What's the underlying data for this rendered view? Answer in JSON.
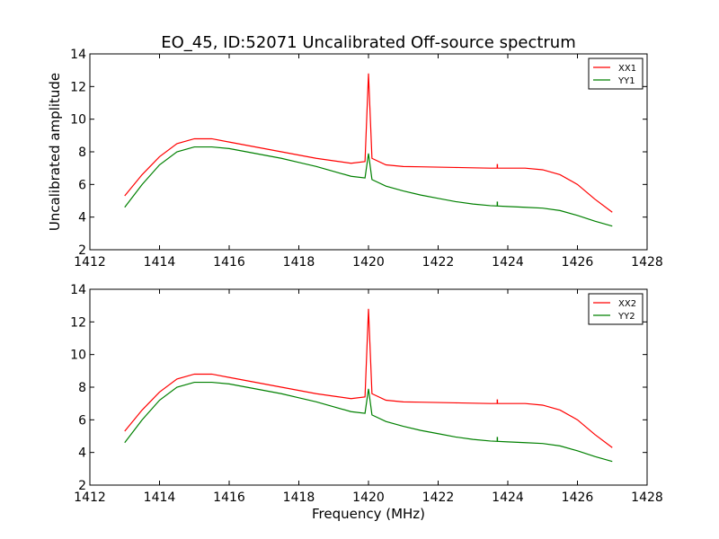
{
  "colors": {
    "xx": "#ff0000",
    "yy": "#008000"
  },
  "chart_data": [
    {
      "type": "line",
      "title": "EO_45, ID:52071 Uncalibrated Off-source spectrum",
      "xlabel": "",
      "ylabel": "Uncalibrated amplitude",
      "xlim": [
        1412,
        1428
      ],
      "ylim": [
        2,
        14
      ],
      "xticks": [
        "1412",
        "1414",
        "1416",
        "1418",
        "1420",
        "1422",
        "1424",
        "1426",
        "1428"
      ],
      "yticks": [
        "2",
        "4",
        "6",
        "8",
        "10",
        "12",
        "14"
      ],
      "legend": "top-right",
      "grid": false,
      "series": [
        {
          "name": "XX1",
          "color": "#ff0000",
          "x": [
            1413.0,
            1413.5,
            1414.0,
            1414.5,
            1415.0,
            1415.5,
            1416.0,
            1416.5,
            1417.0,
            1417.5,
            1418.0,
            1418.5,
            1419.0,
            1419.5,
            1419.9,
            1420.0,
            1420.1,
            1420.5,
            1421.0,
            1421.5,
            1422.0,
            1422.5,
            1423.0,
            1423.5,
            1424.0,
            1424.5,
            1425.0,
            1425.5,
            1426.0,
            1426.5,
            1427.0
          ],
          "y": [
            5.3,
            6.6,
            7.7,
            8.5,
            8.8,
            8.8,
            8.6,
            8.4,
            8.2,
            8.0,
            7.8,
            7.6,
            7.45,
            7.3,
            7.4,
            12.8,
            7.6,
            7.2,
            7.1,
            7.08,
            7.06,
            7.04,
            7.02,
            7.0,
            7.0,
            7.0,
            6.9,
            6.6,
            6.0,
            5.1,
            4.3
          ]
        },
        {
          "name": "YY1",
          "color": "#008000",
          "x": [
            1413.0,
            1413.5,
            1414.0,
            1414.5,
            1415.0,
            1415.5,
            1416.0,
            1416.5,
            1417.0,
            1417.5,
            1418.0,
            1418.5,
            1419.0,
            1419.5,
            1419.9,
            1420.0,
            1420.1,
            1420.5,
            1421.0,
            1421.5,
            1422.0,
            1422.5,
            1423.0,
            1423.5,
            1424.0,
            1424.5,
            1425.0,
            1425.5,
            1426.0,
            1426.5,
            1427.0
          ],
          "y": [
            4.6,
            6.0,
            7.2,
            8.0,
            8.3,
            8.3,
            8.2,
            8.0,
            7.8,
            7.6,
            7.35,
            7.1,
            6.8,
            6.5,
            6.4,
            7.9,
            6.3,
            5.9,
            5.6,
            5.35,
            5.15,
            4.95,
            4.8,
            4.7,
            4.65,
            4.6,
            4.55,
            4.4,
            4.1,
            3.75,
            3.45
          ]
        }
      ],
      "spikes": [
        {
          "series": "XX1",
          "x": 1423.7,
          "y0": 7.0,
          "y1": 7.25
        },
        {
          "series": "YY1",
          "x": 1423.7,
          "y0": 4.7,
          "y1": 4.95
        }
      ]
    },
    {
      "type": "line",
      "title": "",
      "xlabel": "Frequency (MHz)",
      "ylabel": "",
      "xlim": [
        1412,
        1428
      ],
      "ylim": [
        2,
        14
      ],
      "xticks": [
        "1412",
        "1414",
        "1416",
        "1418",
        "1420",
        "1422",
        "1424",
        "1426",
        "1428"
      ],
      "yticks": [
        "2",
        "4",
        "6",
        "8",
        "10",
        "12",
        "14"
      ],
      "legend": "top-right",
      "grid": false,
      "series": [
        {
          "name": "XX2",
          "color": "#ff0000",
          "x": [
            1413.0,
            1413.5,
            1414.0,
            1414.5,
            1415.0,
            1415.5,
            1416.0,
            1416.5,
            1417.0,
            1417.5,
            1418.0,
            1418.5,
            1419.0,
            1419.5,
            1419.9,
            1420.0,
            1420.1,
            1420.5,
            1421.0,
            1421.5,
            1422.0,
            1422.5,
            1423.0,
            1423.5,
            1424.0,
            1424.5,
            1425.0,
            1425.5,
            1426.0,
            1426.5,
            1427.0
          ],
          "y": [
            5.3,
            6.6,
            7.7,
            8.5,
            8.8,
            8.8,
            8.6,
            8.4,
            8.2,
            8.0,
            7.8,
            7.6,
            7.45,
            7.3,
            7.4,
            12.8,
            7.6,
            7.2,
            7.1,
            7.08,
            7.06,
            7.04,
            7.02,
            7.0,
            7.0,
            7.0,
            6.9,
            6.6,
            6.0,
            5.1,
            4.3
          ]
        },
        {
          "name": "YY2",
          "color": "#008000",
          "x": [
            1413.0,
            1413.5,
            1414.0,
            1414.5,
            1415.0,
            1415.5,
            1416.0,
            1416.5,
            1417.0,
            1417.5,
            1418.0,
            1418.5,
            1419.0,
            1419.5,
            1419.9,
            1420.0,
            1420.1,
            1420.5,
            1421.0,
            1421.5,
            1422.0,
            1422.5,
            1423.0,
            1423.5,
            1424.0,
            1424.5,
            1425.0,
            1425.5,
            1426.0,
            1426.5,
            1427.0
          ],
          "y": [
            4.6,
            6.0,
            7.2,
            8.0,
            8.3,
            8.3,
            8.2,
            8.0,
            7.8,
            7.6,
            7.35,
            7.1,
            6.8,
            6.5,
            6.4,
            7.9,
            6.3,
            5.9,
            5.6,
            5.35,
            5.15,
            4.95,
            4.8,
            4.7,
            4.65,
            4.6,
            4.55,
            4.4,
            4.1,
            3.75,
            3.45
          ]
        }
      ],
      "spikes": [
        {
          "series": "XX2",
          "x": 1423.7,
          "y0": 7.0,
          "y1": 7.25
        },
        {
          "series": "YY2",
          "x": 1423.7,
          "y0": 4.7,
          "y1": 4.95
        }
      ]
    }
  ]
}
